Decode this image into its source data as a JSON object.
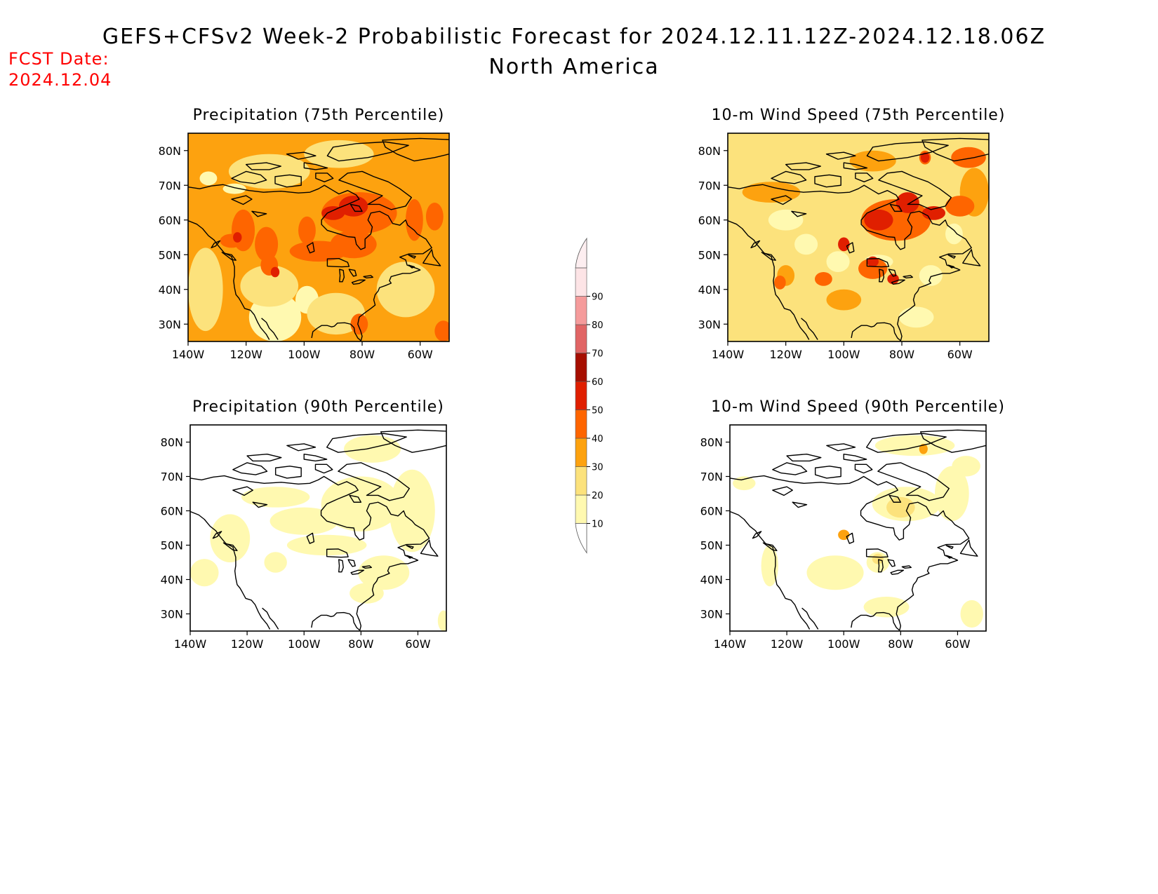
{
  "title": "GEFS+CFSv2 Week-2 Probabilistic Forecast for 2024.12.11.12Z-2024.12.18.06Z",
  "subtitle": "North America",
  "fcst_date": {
    "label": "FCST Date:",
    "value": "2024.12.04"
  },
  "colorbar": {
    "levels": [
      10,
      20,
      30,
      40,
      50,
      60,
      70,
      80,
      90
    ],
    "colors": [
      "#fff9b0",
      "#fce27c",
      "#fda20f",
      "#fe6500",
      "#e01f00",
      "#a60e00",
      "#e16565",
      "#f59b9b",
      "#fde4e6"
    ]
  },
  "maps": [
    {
      "title": "Precipitation (75th Percentile)",
      "x_ticks": [
        "140W",
        "120W",
        "100W",
        "80W",
        "60W"
      ],
      "y_ticks": [
        "80N",
        "70N",
        "60N",
        "50N",
        "40N",
        "30N"
      ],
      "base_category": 2,
      "blobs": [
        {
          "lon": -110,
          "lat": 32,
          "rx": 9,
          "ry": 7,
          "c": 0
        },
        {
          "lon": -99,
          "lat": 37,
          "rx": 4,
          "ry": 4,
          "c": 0
        },
        {
          "lon": -133,
          "lat": 72,
          "rx": 3,
          "ry": 2,
          "c": 0
        },
        {
          "lon": -124,
          "lat": 69,
          "rx": 4,
          "ry": 1.5,
          "c": 0
        },
        {
          "lon": -134,
          "lat": 40,
          "rx": 6,
          "ry": 12,
          "c": 1
        },
        {
          "lon": -112,
          "lat": 41,
          "rx": 10,
          "ry": 6,
          "c": 1
        },
        {
          "lon": -89,
          "lat": 33,
          "rx": 10,
          "ry": 6,
          "c": 1
        },
        {
          "lon": -65,
          "lat": 40,
          "rx": 10,
          "ry": 8,
          "c": 1
        },
        {
          "lon": -112,
          "lat": 74,
          "rx": 14,
          "ry": 5,
          "c": 1
        },
        {
          "lon": -88,
          "lat": 79,
          "rx": 12,
          "ry": 4,
          "c": 1
        },
        {
          "lon": -121,
          "lat": 57,
          "rx": 4,
          "ry": 6,
          "c": 3
        },
        {
          "lon": -113,
          "lat": 53,
          "rx": 4,
          "ry": 5,
          "c": 3
        },
        {
          "lon": -99,
          "lat": 57,
          "rx": 3,
          "ry": 4,
          "c": 3
        },
        {
          "lon": -95,
          "lat": 51,
          "rx": 10,
          "ry": 3,
          "c": 3
        },
        {
          "lon": -112,
          "lat": 47,
          "rx": 3,
          "ry": 3,
          "c": 3
        },
        {
          "lon": -83,
          "lat": 53,
          "rx": 8,
          "ry": 4,
          "c": 3
        },
        {
          "lon": -125,
          "lat": 54,
          "rx": 4,
          "ry": 2,
          "c": 3
        },
        {
          "lon": -81,
          "lat": 62,
          "rx": 13,
          "ry": 6,
          "c": 3
        },
        {
          "lon": -62,
          "lat": 60,
          "rx": 3,
          "ry": 6,
          "c": 3
        },
        {
          "lon": -55,
          "lat": 61,
          "rx": 3,
          "ry": 4,
          "c": 3
        },
        {
          "lon": -81,
          "lat": 30,
          "rx": 3,
          "ry": 3,
          "c": 3
        },
        {
          "lon": -52,
          "lat": 28,
          "rx": 3,
          "ry": 3,
          "c": 3
        },
        {
          "lon": -83,
          "lat": 64,
          "rx": 5,
          "ry": 3,
          "c": 4
        },
        {
          "lon": -90,
          "lat": 62,
          "rx": 4,
          "ry": 2,
          "c": 4
        },
        {
          "lon": -123,
          "lat": 55,
          "rx": 1.5,
          "ry": 1.5,
          "c": 4
        },
        {
          "lon": -110,
          "lat": 45,
          "rx": 1.5,
          "ry": 1.5,
          "c": 4
        }
      ]
    },
    {
      "title": "10-m Wind Speed (75th Percentile)",
      "x_ticks": [
        "140W",
        "120W",
        "100W",
        "80W",
        "60W"
      ],
      "y_ticks": [
        "80N",
        "70N",
        "60N",
        "50N",
        "40N",
        "30N"
      ],
      "base_category": 1,
      "blobs": [
        {
          "lon": -134,
          "lat": 40,
          "rx": 6,
          "ry": 12,
          "c": 1
        },
        {
          "lon": -113,
          "lat": 53,
          "rx": 4,
          "ry": 3,
          "c": 0
        },
        {
          "lon": -102,
          "lat": 48,
          "rx": 4,
          "ry": 3,
          "c": 0
        },
        {
          "lon": -88,
          "lat": 48,
          "rx": 5,
          "ry": 2,
          "c": 0
        },
        {
          "lon": -70,
          "lat": 44,
          "rx": 4,
          "ry": 3,
          "c": 0
        },
        {
          "lon": -75,
          "lat": 32,
          "rx": 6,
          "ry": 3,
          "c": 0
        },
        {
          "lon": -62,
          "lat": 56,
          "rx": 3,
          "ry": 3,
          "c": 0
        },
        {
          "lon": -120,
          "lat": 60,
          "rx": 6,
          "ry": 3,
          "c": 0
        },
        {
          "lon": -125,
          "lat": 68,
          "rx": 10,
          "ry": 3,
          "c": 2
        },
        {
          "lon": -90,
          "lat": 77,
          "rx": 8,
          "ry": 3,
          "c": 2
        },
        {
          "lon": -100,
          "lat": 37,
          "rx": 6,
          "ry": 3,
          "c": 2
        },
        {
          "lon": -120,
          "lat": 44,
          "rx": 3,
          "ry": 3,
          "c": 2
        },
        {
          "lon": -55,
          "lat": 68,
          "rx": 5,
          "ry": 7,
          "c": 2
        },
        {
          "lon": -82,
          "lat": 60,
          "rx": 12,
          "ry": 6,
          "c": 3
        },
        {
          "lon": -122,
          "lat": 42,
          "rx": 2,
          "ry": 2,
          "c": 3
        },
        {
          "lon": -107,
          "lat": 43,
          "rx": 3,
          "ry": 2,
          "c": 3
        },
        {
          "lon": -90,
          "lat": 46,
          "rx": 5,
          "ry": 3,
          "c": 3
        },
        {
          "lon": -57,
          "lat": 78,
          "rx": 6,
          "ry": 3,
          "c": 3
        },
        {
          "lon": -72,
          "lat": 78,
          "rx": 2,
          "ry": 2,
          "c": 3
        },
        {
          "lon": -60,
          "lat": 64,
          "rx": 5,
          "ry": 3,
          "c": 3
        },
        {
          "lon": -88,
          "lat": 60,
          "rx": 5,
          "ry": 3,
          "c": 4
        },
        {
          "lon": -78,
          "lat": 65,
          "rx": 4,
          "ry": 3,
          "c": 4
        },
        {
          "lon": -69,
          "lat": 62,
          "rx": 4,
          "ry": 2,
          "c": 4
        },
        {
          "lon": -72,
          "lat": 78,
          "rx": 1.5,
          "ry": 1.5,
          "c": 4
        },
        {
          "lon": -100,
          "lat": 53,
          "rx": 2,
          "ry": 2,
          "c": 4
        },
        {
          "lon": -90,
          "lat": 48,
          "rx": 2,
          "ry": 1.5,
          "c": 4
        },
        {
          "lon": -83,
          "lat": 43,
          "rx": 2,
          "ry": 1.5,
          "c": 4
        }
      ]
    },
    {
      "title": "Precipitation (90th Percentile)",
      "x_ticks": [
        "140W",
        "120W",
        "100W",
        "80W",
        "60W"
      ],
      "y_ticks": [
        "80N",
        "70N",
        "60N",
        "50N",
        "40N",
        "30N"
      ],
      "base_category": -1,
      "blobs": [
        {
          "lon": -80,
          "lat": 62,
          "rx": 14,
          "ry": 8,
          "c": 0
        },
        {
          "lon": -62,
          "lat": 60,
          "rx": 8,
          "ry": 12,
          "c": 0
        },
        {
          "lon": -100,
          "lat": 57,
          "rx": 12,
          "ry": 4,
          "c": 0
        },
        {
          "lon": -92,
          "lat": 50,
          "rx": 14,
          "ry": 3,
          "c": 0
        },
        {
          "lon": -126,
          "lat": 52,
          "rx": 7,
          "ry": 7,
          "c": 0
        },
        {
          "lon": -110,
          "lat": 45,
          "rx": 4,
          "ry": 3,
          "c": 0
        },
        {
          "lon": -72,
          "lat": 42,
          "rx": 9,
          "ry": 5,
          "c": 0
        },
        {
          "lon": -78,
          "lat": 36,
          "rx": 6,
          "ry": 3,
          "c": 0
        },
        {
          "lon": -135,
          "lat": 42,
          "rx": 5,
          "ry": 4,
          "c": 0
        },
        {
          "lon": -110,
          "lat": 64,
          "rx": 12,
          "ry": 3,
          "c": 0
        },
        {
          "lon": -76,
          "lat": 78,
          "rx": 10,
          "ry": 4,
          "c": 0
        },
        {
          "lon": -51,
          "lat": 28,
          "rx": 2,
          "ry": 3,
          "c": 0
        }
      ]
    },
    {
      "title": "10-m Wind Speed (90th Percentile)",
      "x_ticks": [
        "140W",
        "120W",
        "100W",
        "80W",
        "60W"
      ],
      "y_ticks": [
        "80N",
        "70N",
        "60N",
        "50N",
        "40N",
        "30N"
      ],
      "base_category": -1,
      "blobs": [
        {
          "lon": -78,
          "lat": 62,
          "rx": 12,
          "ry": 5,
          "c": 0
        },
        {
          "lon": -62,
          "lat": 65,
          "rx": 6,
          "ry": 8,
          "c": 0
        },
        {
          "lon": -103,
          "lat": 42,
          "rx": 10,
          "ry": 5,
          "c": 0
        },
        {
          "lon": -88,
          "lat": 45,
          "rx": 4,
          "ry": 3,
          "c": 0
        },
        {
          "lon": -85,
          "lat": 32,
          "rx": 8,
          "ry": 3,
          "c": 0
        },
        {
          "lon": -55,
          "lat": 30,
          "rx": 4,
          "ry": 4,
          "c": 0
        },
        {
          "lon": -126,
          "lat": 44,
          "rx": 3,
          "ry": 6,
          "c": 0
        },
        {
          "lon": -75,
          "lat": 79,
          "rx": 14,
          "ry": 3,
          "c": 0
        },
        {
          "lon": -135,
          "lat": 68,
          "rx": 4,
          "ry": 2,
          "c": 0
        },
        {
          "lon": -57,
          "lat": 73,
          "rx": 5,
          "ry": 3,
          "c": 0
        },
        {
          "lon": -80,
          "lat": 61,
          "rx": 5,
          "ry": 3,
          "c": 1
        },
        {
          "lon": -88,
          "lat": 46,
          "rx": 2,
          "ry": 1.5,
          "c": 1
        },
        {
          "lon": -100,
          "lat": 53,
          "rx": 2,
          "ry": 1.5,
          "c": 2
        },
        {
          "lon": -72,
          "lat": 78,
          "rx": 1.5,
          "ry": 1.5,
          "c": 2
        }
      ]
    }
  ]
}
